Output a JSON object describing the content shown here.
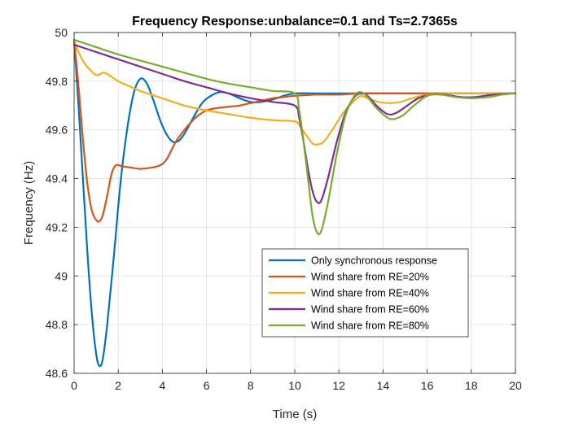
{
  "chart_data": {
    "type": "line",
    "title": "Frequency Response:unbalance=0.1 and Ts=2.7365s",
    "xlabel": "Time (s)",
    "ylabel": "Frequency (Hz)",
    "xlim": [
      0,
      20
    ],
    "ylim": [
      48.6,
      50
    ],
    "xticks": [
      0,
      2,
      4,
      6,
      8,
      10,
      12,
      14,
      16,
      18,
      20
    ],
    "yticks": [
      48.6,
      48.8,
      49,
      49.2,
      49.4,
      49.6,
      49.8,
      50
    ],
    "ytick_labels": [
      "48.6",
      "48.8",
      "49",
      "49.2",
      "49.4",
      "49.6",
      "49.8",
      "50"
    ],
    "grid": true,
    "legend_position": "lower-right",
    "series": [
      {
        "name": "Only synchronous response",
        "color": "#0072BD",
        "points": [
          [
            0,
            49.97
          ],
          [
            0.2,
            49.7
          ],
          [
            0.4,
            49.4
          ],
          [
            0.6,
            49.1
          ],
          [
            0.8,
            48.85
          ],
          [
            1.0,
            48.68
          ],
          [
            1.15,
            48.63
          ],
          [
            1.3,
            48.66
          ],
          [
            1.5,
            48.8
          ],
          [
            1.8,
            49.08
          ],
          [
            2.1,
            49.38
          ],
          [
            2.4,
            49.6
          ],
          [
            2.7,
            49.75
          ],
          [
            3.0,
            49.81
          ],
          [
            3.3,
            49.79
          ],
          [
            3.6,
            49.72
          ],
          [
            3.9,
            49.64
          ],
          [
            4.2,
            49.58
          ],
          [
            4.5,
            49.55
          ],
          [
            4.8,
            49.56
          ],
          [
            5.1,
            49.6
          ],
          [
            5.4,
            49.65
          ],
          [
            5.8,
            49.71
          ],
          [
            6.2,
            49.74
          ],
          [
            6.6,
            49.755
          ],
          [
            7.0,
            49.75
          ],
          [
            7.5,
            49.73
          ],
          [
            8.0,
            49.715
          ],
          [
            8.5,
            49.715
          ],
          [
            9.0,
            49.725
          ],
          [
            9.5,
            49.74
          ],
          [
            10.0,
            49.75
          ],
          [
            11,
            49.75
          ],
          [
            12,
            49.75
          ],
          [
            13,
            49.75
          ],
          [
            14,
            49.75
          ],
          [
            15,
            49.75
          ],
          [
            16,
            49.75
          ],
          [
            17,
            49.75
          ],
          [
            18,
            49.75
          ],
          [
            19,
            49.75
          ],
          [
            20,
            49.75
          ]
        ]
      },
      {
        "name": "Wind share from RE=20%",
        "color": "#D95319",
        "points": [
          [
            0,
            49.97
          ],
          [
            0.2,
            49.78
          ],
          [
            0.4,
            49.56
          ],
          [
            0.6,
            49.38
          ],
          [
            0.8,
            49.27
          ],
          [
            1.0,
            49.23
          ],
          [
            1.15,
            49.225
          ],
          [
            1.3,
            49.25
          ],
          [
            1.5,
            49.33
          ],
          [
            1.7,
            49.42
          ],
          [
            1.9,
            49.455
          ],
          [
            2.2,
            49.45
          ],
          [
            2.6,
            49.445
          ],
          [
            3.0,
            49.44
          ],
          [
            3.5,
            49.445
          ],
          [
            3.9,
            49.455
          ],
          [
            4.2,
            49.48
          ],
          [
            4.6,
            49.55
          ],
          [
            5.0,
            49.6
          ],
          [
            5.5,
            49.65
          ],
          [
            6.0,
            49.68
          ],
          [
            6.5,
            49.69
          ],
          [
            7.0,
            49.695
          ],
          [
            7.5,
            49.7
          ],
          [
            8.0,
            49.71
          ],
          [
            8.5,
            49.72
          ],
          [
            9.0,
            49.73
          ],
          [
            9.5,
            49.735
          ],
          [
            10.0,
            49.74
          ],
          [
            11,
            49.745
          ],
          [
            12,
            49.745
          ],
          [
            13,
            49.75
          ],
          [
            14,
            49.75
          ],
          [
            15,
            49.75
          ],
          [
            16,
            49.75
          ],
          [
            17,
            49.75
          ],
          [
            18,
            49.75
          ],
          [
            19,
            49.75
          ],
          [
            20,
            49.75
          ]
        ]
      },
      {
        "name": "Wind share from RE=40%",
        "color": "#EDB120",
        "points": [
          [
            0,
            49.97
          ],
          [
            0.2,
            49.92
          ],
          [
            0.5,
            49.87
          ],
          [
            0.8,
            49.84
          ],
          [
            1.0,
            49.825
          ],
          [
            1.2,
            49.83
          ],
          [
            1.3,
            49.835
          ],
          [
            1.5,
            49.83
          ],
          [
            2,
            49.8
          ],
          [
            2.5,
            49.78
          ],
          [
            3,
            49.76
          ],
          [
            4,
            49.73
          ],
          [
            5,
            49.7
          ],
          [
            6,
            49.68
          ],
          [
            7,
            49.665
          ],
          [
            8,
            49.65
          ],
          [
            9,
            49.64
          ],
          [
            10,
            49.635
          ],
          [
            10.2,
            49.62
          ],
          [
            10.5,
            49.58
          ],
          [
            10.8,
            49.545
          ],
          [
            11.0,
            49.54
          ],
          [
            11.3,
            49.55
          ],
          [
            11.7,
            49.6
          ],
          [
            12.2,
            49.67
          ],
          [
            12.7,
            49.72
          ],
          [
            13.0,
            49.74
          ],
          [
            13.3,
            49.73
          ],
          [
            13.8,
            49.715
          ],
          [
            14.3,
            49.71
          ],
          [
            14.8,
            49.715
          ],
          [
            15.3,
            49.73
          ],
          [
            16,
            49.745
          ],
          [
            17,
            49.75
          ],
          [
            18,
            49.75
          ],
          [
            19,
            49.75
          ],
          [
            20,
            49.75
          ]
        ]
      },
      {
        "name": "Wind share from RE=60%",
        "color": "#7E2F8E",
        "points": [
          [
            0,
            49.95
          ],
          [
            1,
            49.92
          ],
          [
            2,
            49.89
          ],
          [
            3,
            49.86
          ],
          [
            4,
            49.83
          ],
          [
            5,
            49.8
          ],
          [
            6,
            49.775
          ],
          [
            7,
            49.75
          ],
          [
            8,
            49.73
          ],
          [
            9,
            49.715
          ],
          [
            10,
            49.7
          ],
          [
            10.2,
            49.65
          ],
          [
            10.4,
            49.55
          ],
          [
            10.6,
            49.44
          ],
          [
            10.8,
            49.35
          ],
          [
            11.0,
            49.305
          ],
          [
            11.2,
            49.31
          ],
          [
            11.5,
            49.4
          ],
          [
            11.9,
            49.55
          ],
          [
            12.3,
            49.67
          ],
          [
            12.7,
            49.735
          ],
          [
            13.0,
            49.75
          ],
          [
            13.3,
            49.74
          ],
          [
            13.7,
            49.7
          ],
          [
            14.2,
            49.665
          ],
          [
            14.6,
            49.67
          ],
          [
            15.1,
            49.7
          ],
          [
            15.6,
            49.73
          ],
          [
            16.2,
            49.745
          ],
          [
            16.8,
            49.745
          ],
          [
            17.5,
            49.735
          ],
          [
            18.2,
            49.735
          ],
          [
            19,
            49.745
          ],
          [
            20,
            49.75
          ]
        ]
      },
      {
        "name": "Wind share from RE=80%",
        "color": "#77AC30",
        "points": [
          [
            0,
            49.97
          ],
          [
            1,
            49.94
          ],
          [
            2,
            49.91
          ],
          [
            3,
            49.885
          ],
          [
            4,
            49.86
          ],
          [
            5,
            49.835
          ],
          [
            6,
            49.81
          ],
          [
            7,
            49.79
          ],
          [
            8,
            49.775
          ],
          [
            9,
            49.76
          ],
          [
            10,
            49.75
          ],
          [
            10.2,
            49.68
          ],
          [
            10.4,
            49.55
          ],
          [
            10.6,
            49.4
          ],
          [
            10.8,
            49.25
          ],
          [
            11.0,
            49.18
          ],
          [
            11.2,
            49.185
          ],
          [
            11.5,
            49.3
          ],
          [
            11.9,
            49.5
          ],
          [
            12.3,
            49.66
          ],
          [
            12.7,
            49.74
          ],
          [
            13.0,
            49.755
          ],
          [
            13.3,
            49.735
          ],
          [
            13.7,
            49.69
          ],
          [
            14.2,
            49.65
          ],
          [
            14.5,
            49.645
          ],
          [
            14.9,
            49.66
          ],
          [
            15.4,
            49.7
          ],
          [
            16,
            49.74
          ],
          [
            16.6,
            49.745
          ],
          [
            17.3,
            49.735
          ],
          [
            18,
            49.73
          ],
          [
            18.8,
            49.735
          ],
          [
            19.4,
            49.745
          ],
          [
            20,
            49.75
          ]
        ]
      }
    ]
  }
}
